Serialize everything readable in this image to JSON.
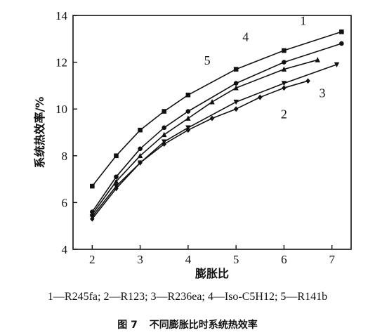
{
  "chart_data": {
    "type": "line",
    "xlabel": "膨胀比",
    "ylabel": "系统热效率/%",
    "xlim": [
      1.6,
      7.4
    ],
    "ylim": [
      4,
      14
    ],
    "xticks": [
      2,
      3,
      4,
      5,
      6,
      7
    ],
    "yticks": [
      4,
      6,
      8,
      10,
      12,
      14
    ],
    "grid": false,
    "legend_text": "1—R245fa; 2—R123; 3—R236ea; 4—Iso-C5H12; 5—R141b",
    "caption_number": "图 7",
    "caption_text": "不同膨胀比时系统热效率",
    "series": [
      {
        "label": "1",
        "marker": "circle",
        "x": [
          2.0,
          2.5,
          3.0,
          3.5,
          4.0,
          5.0,
          6.0,
          7.2
        ],
        "y": [
          5.6,
          7.1,
          8.3,
          9.2,
          9.9,
          11.1,
          12.0,
          12.8
        ]
      },
      {
        "label": "2",
        "marker": "diamond",
        "x": [
          2.0,
          2.5,
          3.0,
          3.5,
          4.0,
          4.5,
          5.0,
          5.5,
          6.0,
          6.5
        ],
        "y": [
          5.3,
          6.6,
          7.7,
          8.5,
          9.1,
          9.6,
          10.0,
          10.5,
          10.9,
          11.2
        ]
      },
      {
        "label": "3",
        "marker": "triangle-down",
        "x": [
          2.0,
          2.5,
          3.0,
          3.5,
          4.0,
          5.0,
          6.0,
          7.1
        ],
        "y": [
          5.4,
          6.7,
          7.7,
          8.6,
          9.2,
          10.3,
          11.1,
          11.9
        ]
      },
      {
        "label": "4",
        "marker": "square",
        "x": [
          2.0,
          2.5,
          3.0,
          3.5,
          4.0,
          5.0,
          6.0,
          7.2
        ],
        "y": [
          6.7,
          8.0,
          9.1,
          9.9,
          10.6,
          11.7,
          12.5,
          13.3
        ]
      },
      {
        "label": "5",
        "marker": "triangle-up",
        "x": [
          2.0,
          2.5,
          3.0,
          3.5,
          4.0,
          4.5,
          5.0,
          6.0,
          6.7
        ],
        "y": [
          5.5,
          6.9,
          8.0,
          8.9,
          9.6,
          10.3,
          10.9,
          11.7,
          12.1
        ]
      }
    ],
    "series_label_positions": [
      {
        "label": "1",
        "x": 6.4,
        "y": 13.6
      },
      {
        "label": "2",
        "x": 6.0,
        "y": 9.6
      },
      {
        "label": "3",
        "x": 6.8,
        "y": 10.5
      },
      {
        "label": "4",
        "x": 5.2,
        "y": 12.9
      },
      {
        "label": "5",
        "x": 4.4,
        "y": 11.9
      }
    ]
  }
}
